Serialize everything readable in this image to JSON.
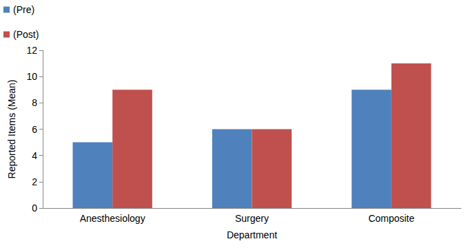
{
  "chart_data": {
    "type": "bar",
    "x_label": "Department",
    "y_label": "Reported Items (Mean)",
    "categories": [
      "Anesthesiology",
      "Surgery",
      "Composite"
    ],
    "series": [
      {
        "name": "(Pre)",
        "color": "#4f81bd",
        "values": [
          5,
          6,
          9
        ]
      },
      {
        "name": "(Post)",
        "color": "#c0504d",
        "values": [
          9,
          6,
          11
        ]
      }
    ],
    "ylim": [
      0,
      12
    ],
    "yticks": [
      0,
      2,
      4,
      6,
      8,
      10,
      12
    ],
    "grid": false,
    "legend": "upper left"
  }
}
